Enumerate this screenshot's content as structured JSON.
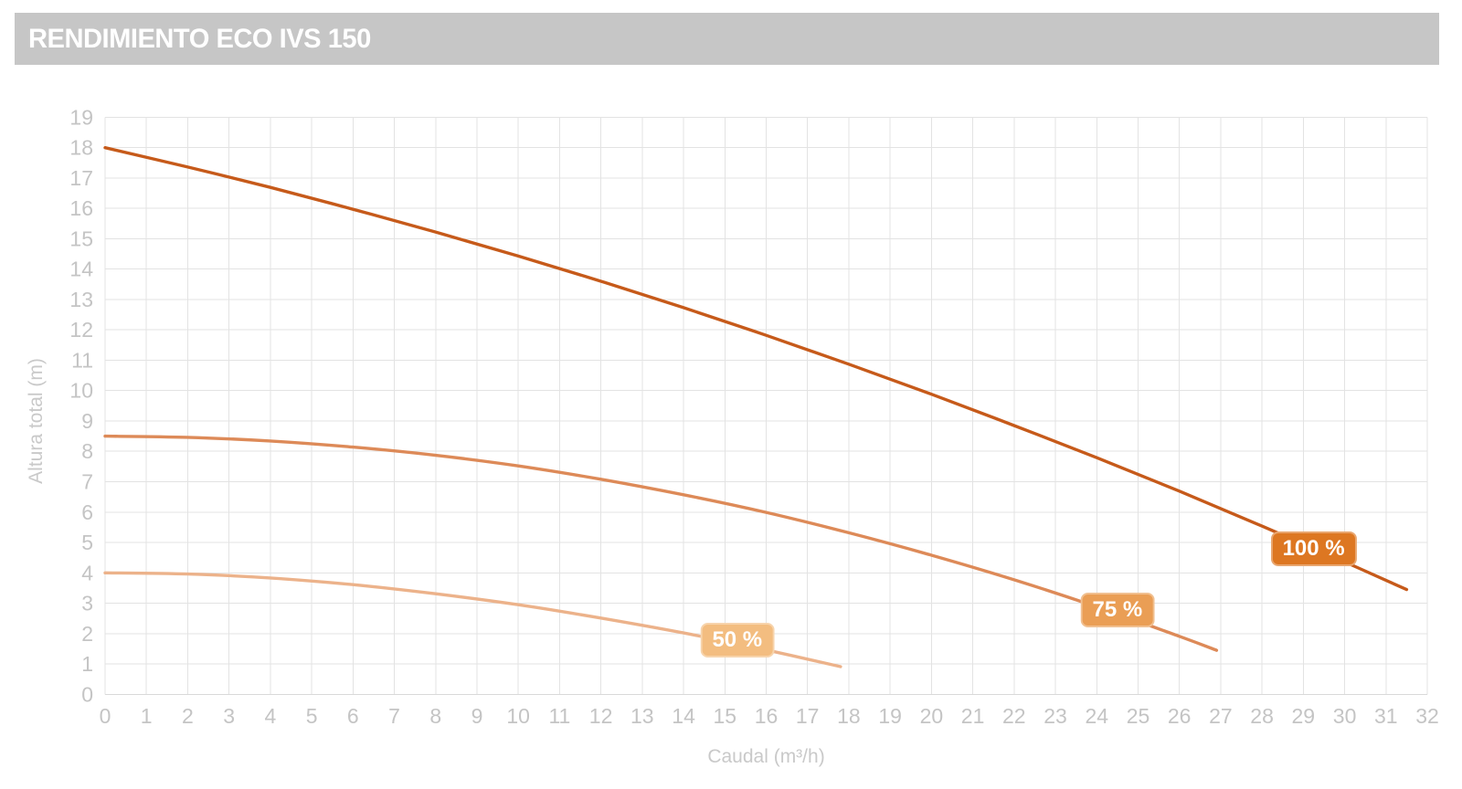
{
  "title_bar": {
    "text": "RENDIMIENTO ECO IVS 150",
    "bg_color": "#c6c6c6",
    "text_color": "#ffffff"
  },
  "chart_data": {
    "type": "line",
    "title": "RENDIMIENTO ECO IVS 150",
    "xlabel": "Caudal (m³/h)",
    "ylabel": "Altura total (m)",
    "xlim": [
      0,
      32
    ],
    "ylim": [
      0,
      19
    ],
    "grid": true,
    "legend_position": "on-curve-badges",
    "x_ticks": [
      0,
      1,
      2,
      3,
      4,
      5,
      6,
      7,
      8,
      9,
      10,
      11,
      12,
      13,
      14,
      15,
      16,
      17,
      18,
      19,
      20,
      21,
      22,
      23,
      24,
      25,
      26,
      27,
      28,
      29,
      30,
      31,
      32
    ],
    "y_ticks": [
      0,
      1,
      2,
      3,
      4,
      5,
      6,
      7,
      8,
      9,
      10,
      11,
      12,
      13,
      14,
      15,
      16,
      17,
      18,
      19
    ],
    "grid_color": "#e3e3e3",
    "axis_line_color": "#d9d9d9",
    "tick_label_color": "#c4c4c4",
    "axis_title_color": "#c9c9c9",
    "series": [
      {
        "id": "100",
        "name": "100 %",
        "color": "#c65a1a",
        "badge_color": "#dd7722",
        "badge_at": [
          29.25,
          4.78
        ],
        "points": [
          [
            0,
            18
          ],
          [
            2,
            17.36
          ],
          [
            4,
            16.69
          ],
          [
            6,
            15.97
          ],
          [
            8,
            15.22
          ],
          [
            10,
            14.43
          ],
          [
            12,
            13.6
          ],
          [
            14,
            12.73
          ],
          [
            16,
            11.82
          ],
          [
            18,
            10.87
          ],
          [
            20,
            9.88
          ],
          [
            22,
            8.85
          ],
          [
            24,
            7.79
          ],
          [
            26,
            6.69
          ],
          [
            28,
            5.54
          ],
          [
            30,
            4.36
          ],
          [
            31.5,
            3.45
          ]
        ]
      },
      {
        "id": "75",
        "name": "75 %",
        "color": "#dd8a58",
        "badge_color": "#ea9e55",
        "badge_at": [
          24.5,
          2.78
        ],
        "points": [
          [
            0,
            8.5
          ],
          [
            2,
            8.46
          ],
          [
            4,
            8.34
          ],
          [
            6,
            8.14
          ],
          [
            8,
            7.87
          ],
          [
            10,
            7.52
          ],
          [
            12,
            7.08
          ],
          [
            14,
            6.57
          ],
          [
            16,
            5.99
          ],
          [
            18,
            5.32
          ],
          [
            20,
            4.58
          ],
          [
            22,
            3.77
          ],
          [
            24,
            2.88
          ],
          [
            26,
            1.91
          ],
          [
            26.9,
            1.45
          ]
        ]
      },
      {
        "id": "50",
        "name": "50 %",
        "color": "#ecb28a",
        "badge_color": "#f3bd80",
        "badge_at": [
          15.3,
          1.78
        ],
        "points": [
          [
            0,
            4
          ],
          [
            2,
            3.96
          ],
          [
            4,
            3.83
          ],
          [
            6,
            3.61
          ],
          [
            8,
            3.31
          ],
          [
            10,
            2.95
          ],
          [
            12,
            2.51
          ],
          [
            14,
            2.02
          ],
          [
            16,
            1.46
          ],
          [
            17.8,
            0.91
          ]
        ]
      }
    ]
  }
}
